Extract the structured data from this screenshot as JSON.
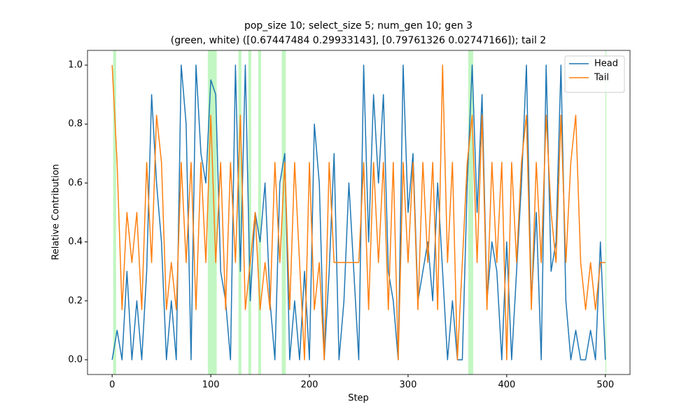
{
  "chart_data": {
    "type": "line",
    "title": "pop_size 10; select_size 5; num_gen 10; gen 3",
    "subtitle": "(green, white) ([0.67447484 0.29933143], [0.79761326 0.02747166]); tail 2",
    "xlabel": "Step",
    "ylabel": "Relative Contribution",
    "x": [
      0,
      5,
      10,
      15,
      20,
      25,
      30,
      35,
      40,
      45,
      50,
      55,
      60,
      65,
      70,
      75,
      80,
      85,
      90,
      95,
      100,
      105,
      110,
      115,
      120,
      125,
      130,
      135,
      140,
      145,
      150,
      155,
      160,
      165,
      170,
      175,
      180,
      185,
      190,
      195,
      200,
      205,
      210,
      215,
      220,
      225,
      230,
      235,
      240,
      245,
      250,
      255,
      260,
      265,
      270,
      275,
      280,
      285,
      290,
      295,
      300,
      305,
      310,
      315,
      320,
      325,
      330,
      335,
      340,
      345,
      350,
      355,
      360,
      365,
      370,
      375,
      380,
      385,
      390,
      395,
      400,
      405,
      410,
      415,
      420,
      425,
      430,
      435,
      440,
      445,
      450,
      455,
      460,
      465,
      470,
      475,
      480,
      485,
      490,
      495,
      500
    ],
    "series": [
      {
        "name": "Head",
        "color": "#1f77b4",
        "values": [
          0,
          0.1,
          0,
          0.3,
          0,
          0.2,
          0,
          0.3,
          0.9,
          0.6,
          0.4,
          0,
          0.2,
          0,
          1.0,
          0.8,
          0,
          1.0,
          0.7,
          0.6,
          0.95,
          0.9,
          0.3,
          0.2,
          0,
          1.0,
          0.3,
          1.0,
          0.2,
          0.5,
          0.4,
          0.6,
          0.2,
          0,
          0.6,
          0.7,
          0,
          0.2,
          0,
          0.3,
          0,
          0.8,
          0.6,
          0,
          0.3,
          0.7,
          0,
          0.2,
          0.6,
          0.3,
          0,
          1.0,
          0.4,
          0.9,
          0.6,
          0.9,
          0.3,
          0.2,
          0,
          1.0,
          0.5,
          0.7,
          0.2,
          0.3,
          0.4,
          0.2,
          0.6,
          0.3,
          0,
          0.2,
          0,
          0,
          0.6,
          1.0,
          0.5,
          0.9,
          0.2,
          0.4,
          0.3,
          0,
          0.4,
          0,
          0.3,
          0.6,
          1.0,
          0.2,
          0.5,
          0,
          1.0,
          0.3,
          0.4,
          1.0,
          0.2,
          0,
          0.1,
          0,
          0,
          0.1,
          0,
          0.4,
          0
        ]
      },
      {
        "name": "Tail",
        "color": "#ff7f0e",
        "values": [
          1.0,
          0.67,
          0.17,
          0.5,
          0.33,
          0.5,
          0.17,
          0.67,
          0.33,
          0.83,
          0.67,
          0.17,
          0.33,
          0.17,
          0.67,
          0.33,
          0.67,
          0.17,
          0.67,
          0.33,
          0.83,
          0.33,
          0.67,
          0.17,
          0.67,
          0.33,
          0.83,
          0.17,
          0.33,
          0.5,
          0.17,
          0.33,
          0.17,
          0.67,
          0.33,
          0.67,
          0.17,
          0.67,
          0.33,
          0,
          0.67,
          0.17,
          0.33,
          0,
          0.67,
          0.33,
          0.33,
          0.33,
          0.33,
          0.33,
          0.33,
          0.67,
          0.17,
          0.67,
          0.33,
          0.67,
          0.17,
          0.67,
          0,
          0.67,
          0.33,
          0.67,
          0.17,
          0.67,
          0.33,
          0.67,
          0.17,
          1.0,
          0.33,
          0.67,
          0,
          0.33,
          0.67,
          0.83,
          0.33,
          0.83,
          0.17,
          0.67,
          0.33,
          0.67,
          0,
          0.67,
          0.33,
          0.67,
          0.83,
          0.17,
          0.67,
          0.33,
          0.83,
          0.5,
          0.33,
          0.83,
          0.33,
          0.67,
          0.83,
          0.33,
          0.17,
          0.33,
          0.17,
          0.33,
          0.33
        ]
      }
    ],
    "highlights": [
      [
        1,
        4
      ],
      [
        97,
        106
      ],
      [
        128,
        131
      ],
      [
        138,
        141
      ],
      [
        148,
        151
      ],
      [
        172,
        176
      ],
      [
        361,
        366
      ],
      [
        500,
        501
      ]
    ],
    "highlight_color": "#90ee90",
    "xlim": [
      -25,
      525
    ],
    "ylim": [
      -0.05,
      1.05
    ],
    "xticks": [
      0,
      100,
      200,
      300,
      400,
      500
    ],
    "yticks": [
      {
        "value": 0,
        "label": "0.0"
      },
      {
        "value": 0.2,
        "label": "0.2"
      },
      {
        "value": 0.4,
        "label": "0.4"
      },
      {
        "value": 0.6,
        "label": "0.6"
      },
      {
        "value": 0.8,
        "label": "0.8"
      },
      {
        "value": 1,
        "label": "1.0"
      }
    ],
    "legend": "upper right"
  }
}
